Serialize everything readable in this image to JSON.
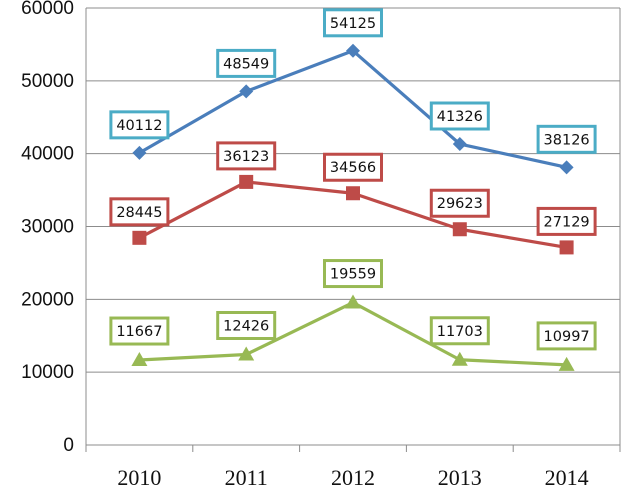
{
  "chart_data": {
    "type": "line",
    "categories": [
      "2010",
      "2011",
      "2012",
      "2013",
      "2014"
    ],
    "ylim": [
      0,
      60000
    ],
    "yticks": [
      0,
      10000,
      20000,
      30000,
      40000,
      50000,
      60000
    ],
    "grid": true,
    "legend": "none",
    "title": "",
    "xlabel": "",
    "ylabel": "",
    "series": [
      {
        "values": [
          40112,
          48549,
          54125,
          41326,
          38126
        ],
        "color": "#4a7ebb",
        "label_border": "#4bacc6",
        "marker": "diamond"
      },
      {
        "values": [
          28445,
          36123,
          34566,
          29623,
          27129
        ],
        "color": "#be4b48",
        "label_border": "#be4b48",
        "marker": "square"
      },
      {
        "values": [
          11667,
          12426,
          19559,
          11703,
          10997
        ],
        "color": "#98b954",
        "label_border": "#98b954",
        "marker": "triangle"
      }
    ]
  }
}
